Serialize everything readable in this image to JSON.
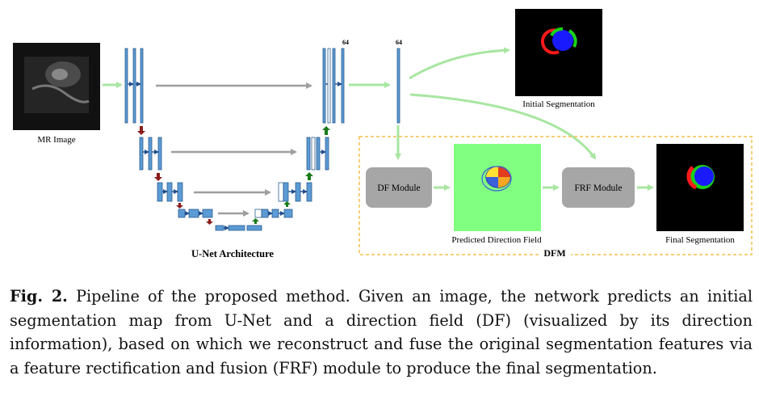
{
  "diagram": {
    "labels": {
      "mr_image": "MR Image",
      "unet_title": "U-Net Architecture",
      "initial_seg": "Initial Segmentation",
      "df_module": "DF Module",
      "pred_df": "Predicted Direction Field",
      "frf_module": "FRF Module",
      "final_seg": "Final Segmentation",
      "dfm": "DFM",
      "channels_a": "64",
      "channels_b": "64"
    },
    "colors": {
      "arrow": "#a8e6a1",
      "block": "#4a90c8",
      "block_fill": "#5b9bd5",
      "down_arrow": "#8b1a1a",
      "up_arrow": "#1a7a1a",
      "skip": "#9e9e9e",
      "module_fill": "#a6a6a6",
      "dfm_border": "#f3c14b",
      "df_bg": "#80ff80"
    }
  },
  "caption": {
    "label": "Fig. 2.",
    "text": "Pipeline of the proposed method. Given an image, the network predicts an initial segmentation map from U-Net and a direction field (DF) (visualized by its direction information), based on which we reconstruct and fuse the original segmentation features via a feature rectification and fusion (FRF) module to produce the final segmentation."
  }
}
